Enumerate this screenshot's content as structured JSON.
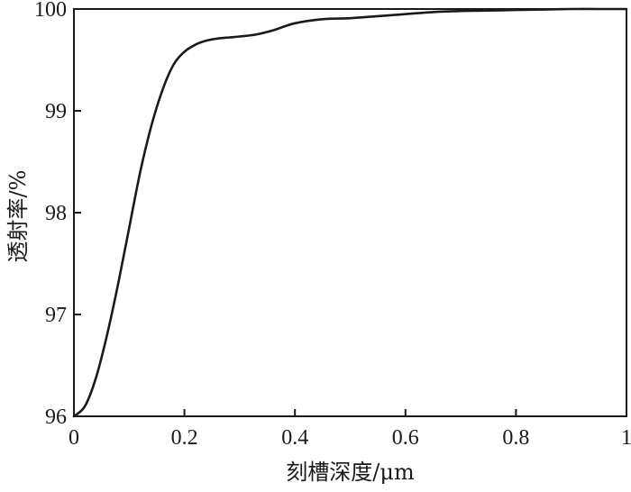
{
  "chart_data": {
    "type": "line",
    "xlabel": "刻槽深度/μm",
    "ylabel": "透射率/%",
    "xlim": [
      0,
      1
    ],
    "ylim": [
      96,
      100
    ],
    "x_ticks": [
      "0",
      "0.2",
      "0.4",
      "0.6",
      "0.8",
      "1"
    ],
    "y_ticks": [
      "96",
      "97",
      "98",
      "99",
      "100"
    ],
    "grid": false,
    "series": [
      {
        "color": "#1a1a1a",
        "x": [
          0,
          0.02,
          0.04,
          0.06,
          0.08,
          0.1,
          0.12,
          0.14,
          0.16,
          0.18,
          0.2,
          0.22,
          0.24,
          0.26,
          0.28,
          0.3,
          0.33,
          0.36,
          0.4,
          0.45,
          0.5,
          0.55,
          0.6,
          0.65,
          0.7,
          0.75,
          0.8,
          0.85,
          0.9,
          0.95,
          1.0
        ],
        "y": [
          96.0,
          96.1,
          96.38,
          96.8,
          97.3,
          97.85,
          98.4,
          98.85,
          99.2,
          99.45,
          99.58,
          99.65,
          99.69,
          99.71,
          99.72,
          99.73,
          99.75,
          99.79,
          99.86,
          99.9,
          99.91,
          99.93,
          99.95,
          99.97,
          99.98,
          99.985,
          99.99,
          99.995,
          100.0,
          100.0,
          100.0
        ]
      }
    ]
  }
}
